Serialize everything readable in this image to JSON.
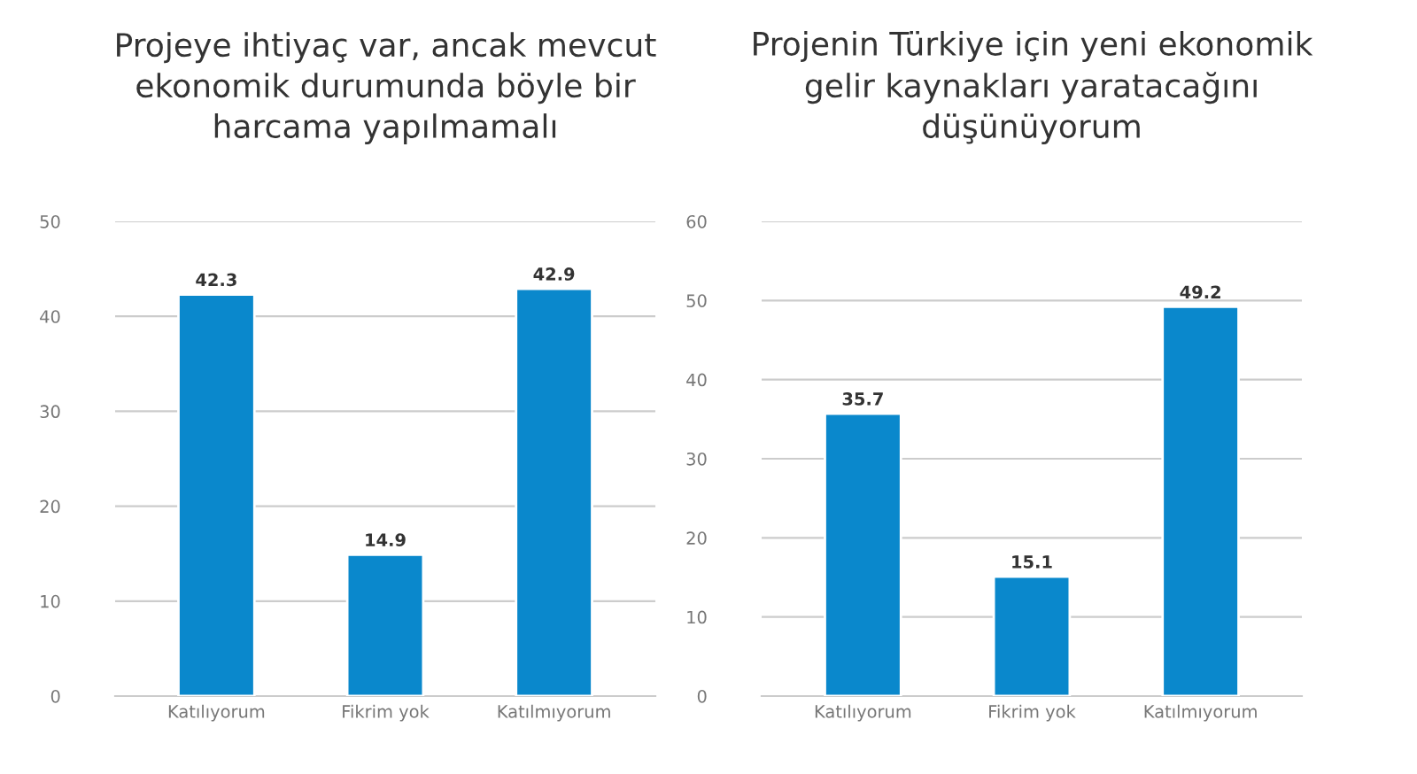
{
  "chart_data": [
    {
      "type": "bar",
      "title": "Projeye ihtiyaç var, ancak mevcut\nekonomik durumunda böyle bir\nharcama yapılmamalı",
      "categories": [
        "Katılıyorum",
        "Fikrim yok",
        "Katılmıyorum"
      ],
      "values": [
        42.3,
        14.9,
        42.9
      ],
      "color": "#0a88cc",
      "ylim": [
        0,
        50
      ],
      "yticks": [
        0,
        10,
        20,
        30,
        40,
        50
      ],
      "grid": "y",
      "data_labels": true
    },
    {
      "type": "bar",
      "title": "Projenin Türkiye için yeni ekonomik\ngelir kaynakları yaratacağını\ndüşünüyorum",
      "categories": [
        "Katılıyorum",
        "Fikrim yok",
        "Katılmıyorum"
      ],
      "values": [
        35.7,
        15.1,
        49.2
      ],
      "color": "#0a88cc",
      "ylim": [
        0,
        60
      ],
      "yticks": [
        0,
        10,
        20,
        30,
        40,
        50,
        60
      ],
      "grid": "y",
      "data_labels": true
    }
  ]
}
